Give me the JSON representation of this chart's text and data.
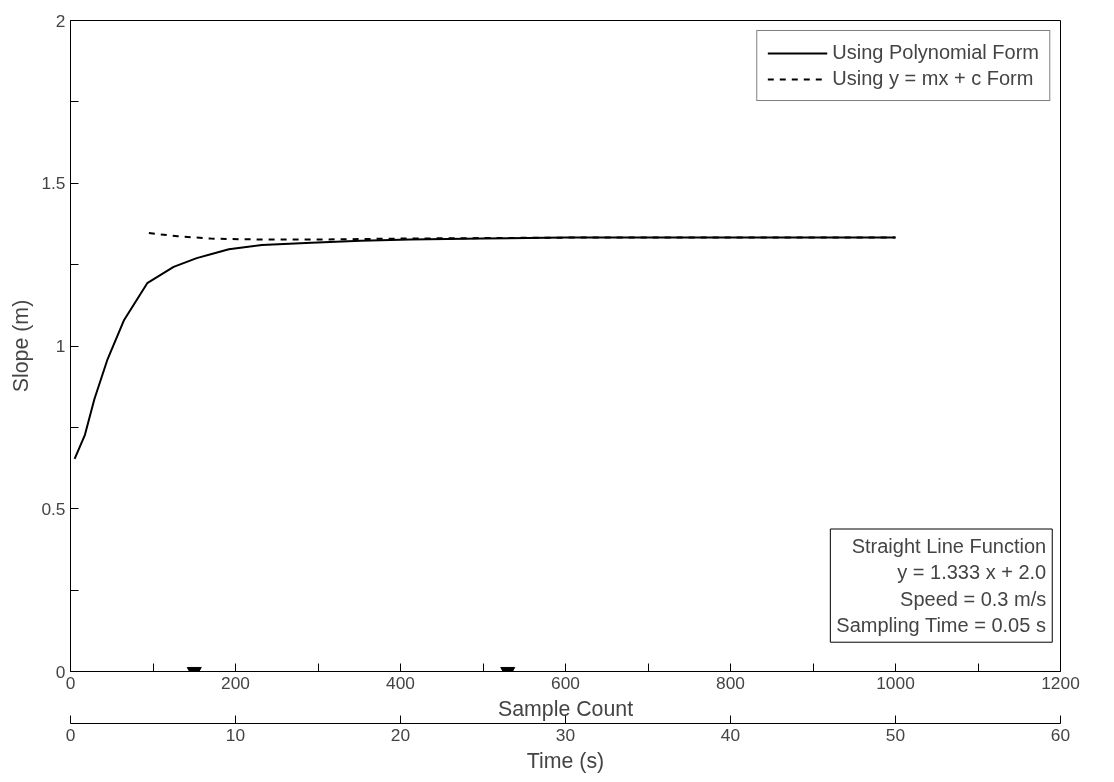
{
  "chart_data": {
    "type": "line",
    "xlabel": "Sample Count",
    "ylabel": "Slope (m)",
    "x2label": "Time (s)",
    "xlim": [
      0,
      1200
    ],
    "xticks": [
      0,
      {
        "value": 100,
        "label": null
      },
      200,
      {
        "value": 300,
        "label": null
      },
      400,
      {
        "value": 500,
        "label": null
      },
      600,
      {
        "value": 700,
        "label": null
      },
      800,
      {
        "value": 900,
        "label": null
      },
      1000,
      {
        "value": 1100,
        "label": null
      },
      1200
    ],
    "ylim": [
      0,
      2
    ],
    "yticks": [
      0,
      {
        "value": 0.25,
        "label": null
      },
      0.5,
      {
        "value": 0.75,
        "label": null
      },
      1,
      {
        "value": 1.25,
        "label": null
      },
      1.5,
      {
        "value": 1.75,
        "label": null
      },
      2
    ],
    "x2lim": [
      0,
      60
    ],
    "x2ticks": [
      0,
      10,
      20,
      30,
      40,
      50,
      60
    ],
    "grid": false,
    "legend": "top right",
    "series": [
      {
        "name": "Using Polynomial Form",
        "color": "#000000",
        "line_style": "solid",
        "x": [
          5,
          17.5,
          29,
          45,
          65,
          93,
          125,
          153,
          192,
          232,
          292,
          352,
          412,
          500,
          600,
          800,
          1000
        ],
        "values": [
          0.653,
          0.727,
          0.837,
          0.96,
          1.08,
          1.193,
          1.243,
          1.27,
          1.297,
          1.31,
          1.317,
          1.323,
          1.327,
          1.33,
          1.333,
          1.333,
          1.333
        ]
      },
      {
        "name": "Using y = mx + c Form",
        "color": "#000000",
        "line_style": "dashed",
        "x": [
          95,
          130,
          170,
          230,
          300,
          400,
          600,
          1000
        ],
        "values": [
          1.347,
          1.337,
          1.33,
          1.327,
          1.327,
          1.33,
          1.333,
          1.333
        ]
      },
      {
        "type": "scatter",
        "marker": "triangle",
        "color": "#000000",
        "x": [
          150,
          530
        ],
        "values": [
          0,
          0
        ]
      }
    ],
    "annotations": [
      "Straight Line Function\ny = 1.333 x + 2.0\nSpeed = 0.3 m/s\nSampling Time = 0.05 s"
    ]
  }
}
